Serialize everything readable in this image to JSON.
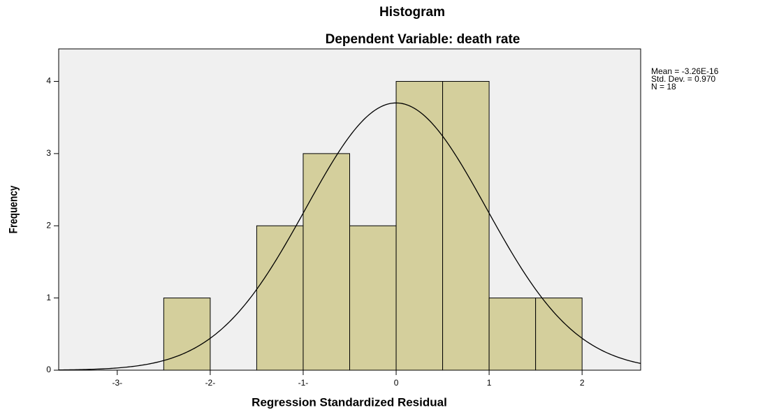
{
  "chart_data": {
    "type": "histogram",
    "title": "Histogram",
    "subtitle": "Dependent Variable: death rate",
    "x_label": "Regression Standardized Residual",
    "y_label": "Frequency",
    "bins": [
      -2.5,
      -2,
      -1.5,
      -1,
      -0.5,
      0,
      0.5,
      1,
      1.5,
      2
    ],
    "values": [
      1,
      0,
      2,
      3,
      2,
      4,
      4,
      1,
      1
    ],
    "color": "#d4cf9c",
    "xlim": [
      -3.63,
      2.63
    ],
    "xticks": [
      {
        "value": -3,
        "label": "-3-"
      },
      {
        "value": -2,
        "label": "-2-"
      },
      {
        "value": -1,
        "label": "-1-"
      },
      0,
      1,
      2
    ],
    "ylim": [
      0,
      4.45
    ],
    "yticks": [
      0,
      1,
      2,
      3,
      4
    ],
    "normal_curve": {
      "mean": -3.26e-16,
      "std": 0.97,
      "n": 18
    },
    "annotations": [
      "Mean = -3.26E-16",
      "Std. Dev. = 0.970",
      "N = 18"
    ]
  }
}
